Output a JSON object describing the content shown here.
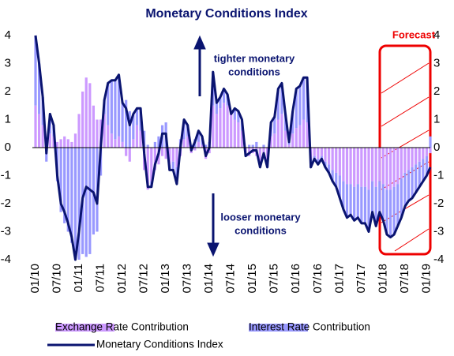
{
  "chart_data": {
    "type": "combo",
    "title": "Monetary Conditions Index",
    "annotations": {
      "tighter": [
        "tighter monetary",
        "conditions"
      ],
      "looser": [
        "looser monetary",
        "conditions"
      ],
      "forecast": "Forecast"
    },
    "categories": [
      "01/10",
      null,
      null,
      null,
      null,
      null,
      "07/10",
      null,
      null,
      null,
      null,
      null,
      "01/11",
      null,
      null,
      null,
      null,
      null,
      "07/11",
      null,
      null,
      null,
      null,
      null,
      "01/12",
      null,
      null,
      null,
      null,
      null,
      "07/12",
      null,
      null,
      null,
      null,
      null,
      "01/13",
      null,
      null,
      null,
      null,
      null,
      "07/13",
      null,
      null,
      null,
      null,
      null,
      "01/14",
      null,
      null,
      null,
      null,
      null,
      "07/14",
      null,
      null,
      null,
      null,
      null,
      "01/15",
      null,
      null,
      null,
      null,
      null,
      "07/15",
      null,
      null,
      null,
      null,
      null,
      "01/16",
      null,
      null,
      null,
      null,
      null,
      "07/16",
      null,
      null,
      null,
      null,
      null,
      "01/17",
      null,
      null,
      null,
      null,
      null,
      "07/17",
      null,
      null,
      null,
      null,
      null,
      "01/18",
      null,
      null,
      null,
      null,
      null,
      "07/18",
      null,
      null,
      null,
      null,
      null,
      "01/19",
      null
    ],
    "stacked": true,
    "series": [
      {
        "name": "Exchange Rate Contribution",
        "kind": "bar",
        "color": "#cc99ff",
        "values": [
          1.5,
          1.2,
          0.8,
          0.3,
          0.5,
          0.4,
          0.2,
          0.3,
          0.4,
          0.3,
          0.2,
          0.5,
          1.2,
          2.0,
          2.5,
          2.3,
          1.5,
          1.0,
          1.0,
          1.2,
          0.8,
          0.5,
          0.3,
          0.4,
          0.2,
          -0.3,
          -0.5,
          0.3,
          0.8,
          0.6,
          -0.8,
          -1.5,
          -1.2,
          -0.8,
          -0.6,
          -0.3,
          -0.4,
          -0.6,
          -0.5,
          -0.7,
          -0.3,
          0.3,
          0.4,
          -0.2,
          -0.1,
          0.2,
          0.1,
          -0.4,
          -0.2,
          1.5,
          1.2,
          1.4,
          1.6,
          1.5,
          1.2,
          1.0,
          0.9,
          0.6,
          -0.2,
          -0.3,
          -0.2,
          -0.3,
          -0.6,
          -0.3,
          -0.5,
          0.4,
          0.5,
          1.0,
          1.2,
          0.6,
          0.1,
          0.5,
          0.7,
          0.8,
          1.0,
          0.9,
          -0.4,
          -0.3,
          -0.4,
          -0.3,
          -0.5,
          -0.6,
          -0.8,
          -0.9,
          -1.0,
          -1.2,
          -1.3,
          -1.3,
          -1.4,
          -1.3,
          -1.4,
          -1.4,
          -1.5,
          -1.2,
          -1.4,
          -1.2,
          -1.3,
          -1.5,
          -1.5,
          -1.4,
          -1.3,
          -1.1,
          -0.9,
          -0.8,
          -0.7,
          -0.6,
          -0.5,
          -0.4,
          -0.3,
          -0.2
        ]
      },
      {
        "name": "Interest Rate Contribution",
        "kind": "bar",
        "color": "#9999ff",
        "values": [
          2.5,
          1.8,
          1.0,
          -0.5,
          0.7,
          0.4,
          -1.2,
          -2.3,
          -2.7,
          -3.0,
          -3.4,
          -4.0,
          -4.0,
          -3.8,
          -3.9,
          -3.8,
          -3.1,
          -3.0,
          -1.0,
          0.5,
          1.5,
          1.9,
          2.1,
          2.2,
          1.4,
          1.7,
          1.3,
          0.9,
          0.6,
          0.8,
          0.6,
          0.1,
          -0.2,
          0.2,
          0.4,
          0.8,
          0.9,
          -0.2,
          -0.3,
          -0.6,
          0.3,
          0.7,
          0.4,
          0.1,
          0.3,
          0.4,
          0.3,
          0.1,
          0.2,
          1.2,
          0.4,
          0.4,
          0.5,
          0.4,
          0.0,
          0.4,
          0.4,
          0.4,
          -0.1,
          0.1,
          0.1,
          0.2,
          -0.1,
          0.1,
          -0.2,
          0.5,
          0.6,
          1.1,
          1.1,
          0.6,
          0.1,
          0.8,
          1.4,
          1.4,
          1.5,
          1.6,
          -0.3,
          -0.1,
          -0.2,
          -0.1,
          -0.2,
          -0.3,
          -0.4,
          -0.5,
          -0.8,
          -1.0,
          -1.2,
          -1.1,
          -1.2,
          -1.2,
          -1.3,
          -1.3,
          -1.5,
          -1.1,
          -1.4,
          -1.1,
          -1.3,
          -1.6,
          -1.7,
          -1.7,
          -1.5,
          -1.4,
          -1.2,
          -1.1,
          -1.1,
          -1.0,
          -0.9,
          -0.8,
          -0.7,
          0.4
        ]
      },
      {
        "name": "Monetary Conditions Index",
        "kind": "line",
        "color": "#0a1470",
        "values": [
          4,
          3.0,
          1.8,
          -0.2,
          1.2,
          0.8,
          -1.0,
          -2.0,
          -2.3,
          -2.7,
          -3.2,
          -4.0,
          -3.0,
          -1.8,
          -1.4,
          -1.5,
          -1.6,
          -2.0,
          0.0,
          1.7,
          2.3,
          2.4,
          2.4,
          2.6,
          1.6,
          1.4,
          0.8,
          1.2,
          1.4,
          1.4,
          -0.2,
          -1.4,
          -1.4,
          -0.6,
          -0.2,
          0.5,
          0.5,
          -0.8,
          -0.8,
          -1.3,
          0.0,
          1.0,
          0.8,
          -0.1,
          0.2,
          0.6,
          0.4,
          -0.3,
          0.0,
          2.7,
          1.6,
          1.8,
          2.1,
          1.9,
          1.2,
          1.4,
          1.3,
          1.0,
          -0.3,
          -0.2,
          -0.1,
          -0.1,
          -0.7,
          -0.2,
          -0.7,
          0.9,
          1.1,
          2.1,
          2.3,
          1.2,
          0.2,
          1.3,
          2.1,
          2.2,
          2.5,
          2.5,
          -0.7,
          -0.4,
          -0.6,
          -0.4,
          -0.7,
          -0.9,
          -1.2,
          -1.4,
          -1.8,
          -2.2,
          -2.5,
          -2.4,
          -2.6,
          -2.5,
          -2.7,
          -2.7,
          -3.0,
          -2.3,
          -2.8,
          -2.3,
          -2.6,
          -3.1,
          -3.2,
          -3.1,
          -2.8,
          -2.5,
          -2.1,
          -1.9,
          -1.8,
          -1.6,
          -1.4,
          -1.2,
          -1.0,
          -0.7
        ]
      }
    ],
    "ylim": [
      -4,
      4
    ],
    "yticks": [
      -4,
      -3,
      -2,
      -1,
      0,
      1,
      2,
      3,
      4
    ],
    "y2lim": [
      -4,
      4
    ],
    "y2ticks": [
      -4,
      -3,
      -2,
      -1,
      0,
      1,
      2,
      3,
      4
    ],
    "grid": false
  }
}
